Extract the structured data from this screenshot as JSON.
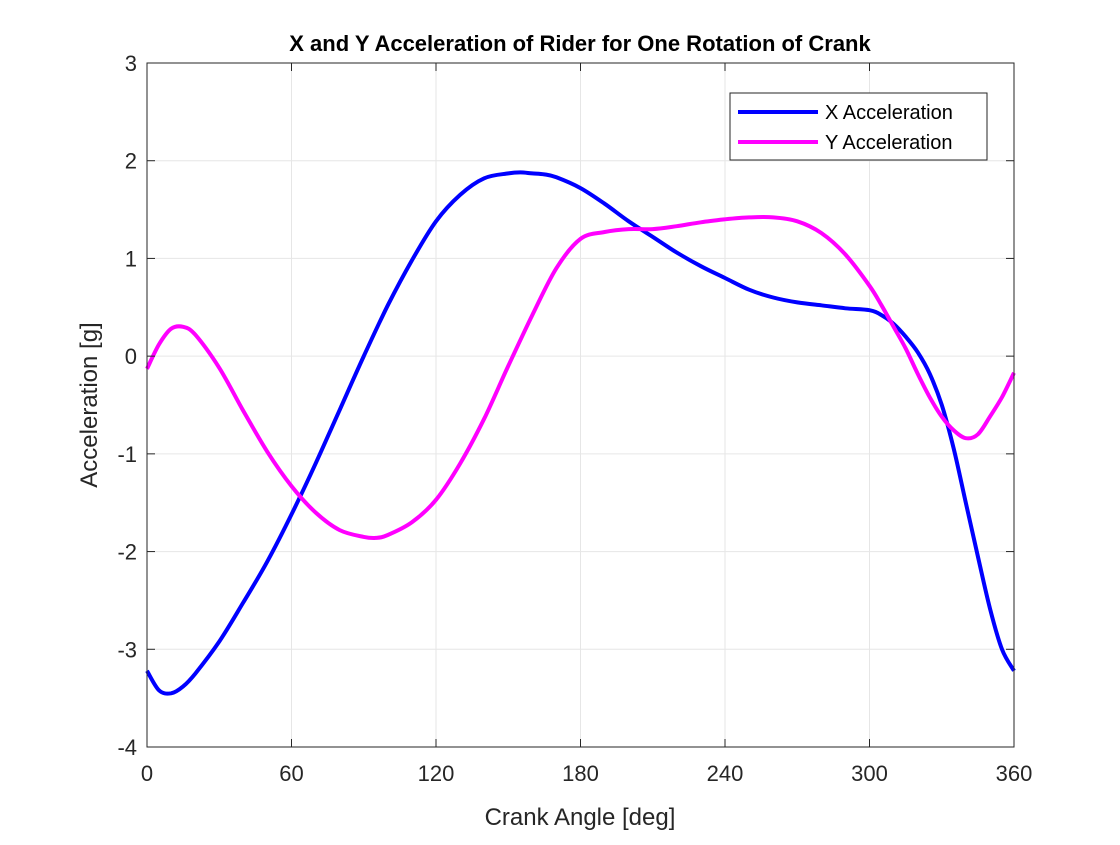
{
  "chart_data": {
    "type": "line",
    "title": "X and Y Acceleration of Rider for One Rotation of Crank",
    "xlabel": "Crank Angle [deg]",
    "ylabel": "Acceleration [g]",
    "xlim": [
      0,
      360
    ],
    "ylim": [
      -4,
      3
    ],
    "xticks": [
      0,
      60,
      120,
      180,
      240,
      300,
      360
    ],
    "yticks": [
      -4,
      -3,
      -2,
      -1,
      0,
      1,
      2,
      3
    ],
    "grid": true,
    "legend_position": "top-right",
    "series": [
      {
        "name": "X Acceleration",
        "color": "#0000ff",
        "x": [
          0,
          5,
          10,
          15,
          20,
          30,
          40,
          50,
          60,
          70,
          80,
          90,
          100,
          110,
          120,
          130,
          140,
          150,
          155,
          160,
          165,
          170,
          180,
          190,
          200,
          210,
          220,
          230,
          240,
          250,
          260,
          270,
          280,
          290,
          300,
          305,
          310,
          315,
          320,
          325,
          330,
          335,
          340,
          345,
          350,
          355,
          360
        ],
        "values": [
          -3.22,
          -3.42,
          -3.45,
          -3.38,
          -3.25,
          -2.92,
          -2.52,
          -2.1,
          -1.62,
          -1.1,
          -0.55,
          0.0,
          0.52,
          0.98,
          1.38,
          1.65,
          1.82,
          1.87,
          1.88,
          1.87,
          1.86,
          1.83,
          1.72,
          1.56,
          1.38,
          1.22,
          1.06,
          0.92,
          0.8,
          0.68,
          0.6,
          0.55,
          0.52,
          0.49,
          0.47,
          0.42,
          0.33,
          0.2,
          0.04,
          -0.18,
          -0.5,
          -0.95,
          -1.5,
          -2.05,
          -2.58,
          -3.0,
          -3.22
        ]
      },
      {
        "name": "Y Acceleration",
        "color": "#ff00ff",
        "x": [
          0,
          5,
          10,
          15,
          20,
          30,
          40,
          50,
          60,
          70,
          80,
          90,
          95,
          100,
          110,
          120,
          130,
          140,
          150,
          160,
          170,
          180,
          190,
          200,
          210,
          220,
          230,
          240,
          250,
          260,
          270,
          280,
          290,
          300,
          305,
          310,
          315,
          320,
          325,
          330,
          335,
          340,
          345,
          350,
          355,
          360
        ],
        "values": [
          -0.13,
          0.12,
          0.28,
          0.3,
          0.22,
          -0.12,
          -0.56,
          -0.98,
          -1.33,
          -1.6,
          -1.78,
          -1.85,
          -1.86,
          -1.83,
          -1.7,
          -1.47,
          -1.1,
          -0.64,
          -0.1,
          0.42,
          0.9,
          1.2,
          1.27,
          1.3,
          1.3,
          1.33,
          1.37,
          1.4,
          1.42,
          1.42,
          1.38,
          1.26,
          1.04,
          0.72,
          0.52,
          0.3,
          0.08,
          -0.18,
          -0.42,
          -0.62,
          -0.76,
          -0.84,
          -0.8,
          -0.62,
          -0.42,
          -0.17
        ]
      }
    ]
  }
}
